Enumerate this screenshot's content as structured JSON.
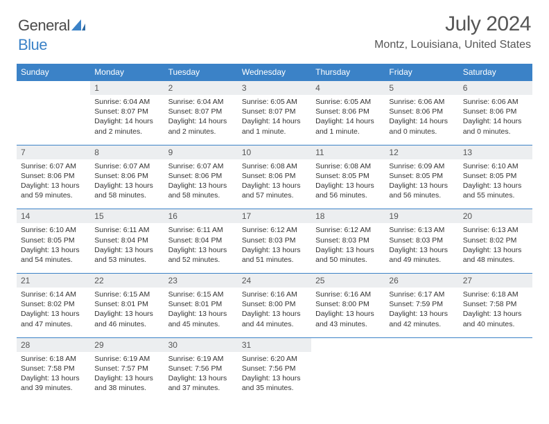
{
  "logo": {
    "word1": "General",
    "word2": "Blue"
  },
  "title": "July 2024",
  "location": "Montz, Louisiana, United States",
  "colors": {
    "accent": "#3b82c7",
    "header_bg": "#3b82c7",
    "daynum_bg": "#eceef0",
    "text": "#555555"
  },
  "dow": [
    "Sunday",
    "Monday",
    "Tuesday",
    "Wednesday",
    "Thursday",
    "Friday",
    "Saturday"
  ],
  "weeks": [
    {
      "nums": [
        "",
        "1",
        "2",
        "3",
        "4",
        "5",
        "6"
      ],
      "details": [
        "",
        "Sunrise: 6:04 AM\nSunset: 8:07 PM\nDaylight: 14 hours and 2 minutes.",
        "Sunrise: 6:04 AM\nSunset: 8:07 PM\nDaylight: 14 hours and 2 minutes.",
        "Sunrise: 6:05 AM\nSunset: 8:07 PM\nDaylight: 14 hours and 1 minute.",
        "Sunrise: 6:05 AM\nSunset: 8:06 PM\nDaylight: 14 hours and 1 minute.",
        "Sunrise: 6:06 AM\nSunset: 8:06 PM\nDaylight: 14 hours and 0 minutes.",
        "Sunrise: 6:06 AM\nSunset: 8:06 PM\nDaylight: 14 hours and 0 minutes."
      ]
    },
    {
      "nums": [
        "7",
        "8",
        "9",
        "10",
        "11",
        "12",
        "13"
      ],
      "details": [
        "Sunrise: 6:07 AM\nSunset: 8:06 PM\nDaylight: 13 hours and 59 minutes.",
        "Sunrise: 6:07 AM\nSunset: 8:06 PM\nDaylight: 13 hours and 58 minutes.",
        "Sunrise: 6:07 AM\nSunset: 8:06 PM\nDaylight: 13 hours and 58 minutes.",
        "Sunrise: 6:08 AM\nSunset: 8:06 PM\nDaylight: 13 hours and 57 minutes.",
        "Sunrise: 6:08 AM\nSunset: 8:05 PM\nDaylight: 13 hours and 56 minutes.",
        "Sunrise: 6:09 AM\nSunset: 8:05 PM\nDaylight: 13 hours and 56 minutes.",
        "Sunrise: 6:10 AM\nSunset: 8:05 PM\nDaylight: 13 hours and 55 minutes."
      ]
    },
    {
      "nums": [
        "14",
        "15",
        "16",
        "17",
        "18",
        "19",
        "20"
      ],
      "details": [
        "Sunrise: 6:10 AM\nSunset: 8:05 PM\nDaylight: 13 hours and 54 minutes.",
        "Sunrise: 6:11 AM\nSunset: 8:04 PM\nDaylight: 13 hours and 53 minutes.",
        "Sunrise: 6:11 AM\nSunset: 8:04 PM\nDaylight: 13 hours and 52 minutes.",
        "Sunrise: 6:12 AM\nSunset: 8:03 PM\nDaylight: 13 hours and 51 minutes.",
        "Sunrise: 6:12 AM\nSunset: 8:03 PM\nDaylight: 13 hours and 50 minutes.",
        "Sunrise: 6:13 AM\nSunset: 8:03 PM\nDaylight: 13 hours and 49 minutes.",
        "Sunrise: 6:13 AM\nSunset: 8:02 PM\nDaylight: 13 hours and 48 minutes."
      ]
    },
    {
      "nums": [
        "21",
        "22",
        "23",
        "24",
        "25",
        "26",
        "27"
      ],
      "details": [
        "Sunrise: 6:14 AM\nSunset: 8:02 PM\nDaylight: 13 hours and 47 minutes.",
        "Sunrise: 6:15 AM\nSunset: 8:01 PM\nDaylight: 13 hours and 46 minutes.",
        "Sunrise: 6:15 AM\nSunset: 8:01 PM\nDaylight: 13 hours and 45 minutes.",
        "Sunrise: 6:16 AM\nSunset: 8:00 PM\nDaylight: 13 hours and 44 minutes.",
        "Sunrise: 6:16 AM\nSunset: 8:00 PM\nDaylight: 13 hours and 43 minutes.",
        "Sunrise: 6:17 AM\nSunset: 7:59 PM\nDaylight: 13 hours and 42 minutes.",
        "Sunrise: 6:18 AM\nSunset: 7:58 PM\nDaylight: 13 hours and 40 minutes."
      ]
    },
    {
      "nums": [
        "28",
        "29",
        "30",
        "31",
        "",
        "",
        ""
      ],
      "details": [
        "Sunrise: 6:18 AM\nSunset: 7:58 PM\nDaylight: 13 hours and 39 minutes.",
        "Sunrise: 6:19 AM\nSunset: 7:57 PM\nDaylight: 13 hours and 38 minutes.",
        "Sunrise: 6:19 AM\nSunset: 7:56 PM\nDaylight: 13 hours and 37 minutes.",
        "Sunrise: 6:20 AM\nSunset: 7:56 PM\nDaylight: 13 hours and 35 minutes.",
        "",
        "",
        ""
      ]
    }
  ]
}
